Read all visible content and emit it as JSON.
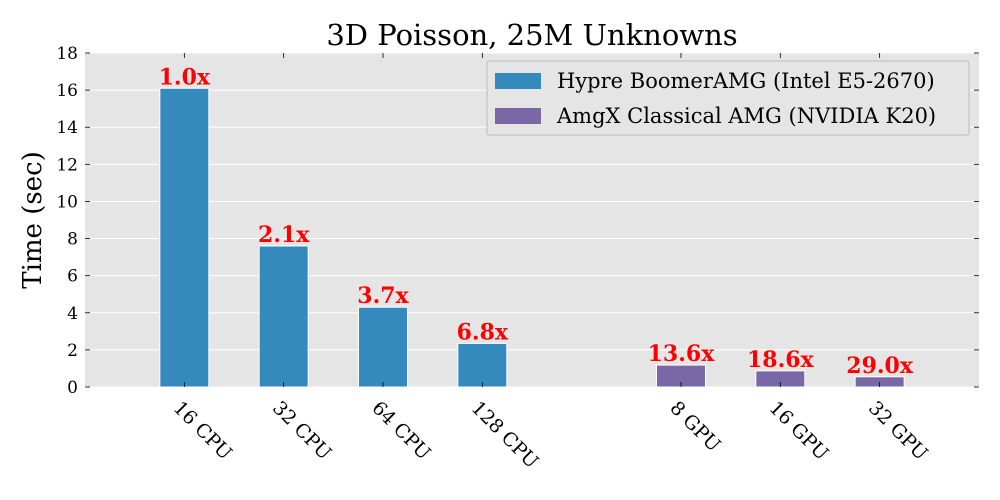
{
  "chart_data": {
    "type": "bar",
    "title": "3D Poisson, 25M Unknowns",
    "xlabel": "",
    "ylabel": "Time (sec)",
    "ylim": [
      0,
      18
    ],
    "yticks": [
      0,
      2,
      4,
      6,
      8,
      10,
      12,
      14,
      16,
      18
    ],
    "grid": true,
    "legend_position": "top-right",
    "colors": {
      "background": "#e5e5e5",
      "grid": "#ffffff",
      "label_red": "#ff0000"
    },
    "series": [
      {
        "name": "Hypre BoomerAMG (Intel E5-2670)",
        "color": "#348abd",
        "categories": [
          "16 CPU",
          "32 CPU",
          "64 CPU",
          "128 CPU"
        ],
        "values": [
          16.1,
          7.6,
          4.3,
          2.35
        ],
        "labels": [
          "1.0x",
          "2.1x",
          "3.7x",
          "6.8x"
        ]
      },
      {
        "name": "AmgX Classical AMG (NVIDIA K20)",
        "color": "#7a68a6",
        "categories": [
          "8 GPU",
          "16 GPU",
          "32 GPU"
        ],
        "values": [
          1.18,
          0.87,
          0.55
        ],
        "labels": [
          "13.6x",
          "18.6x",
          "29.0x"
        ]
      }
    ]
  }
}
